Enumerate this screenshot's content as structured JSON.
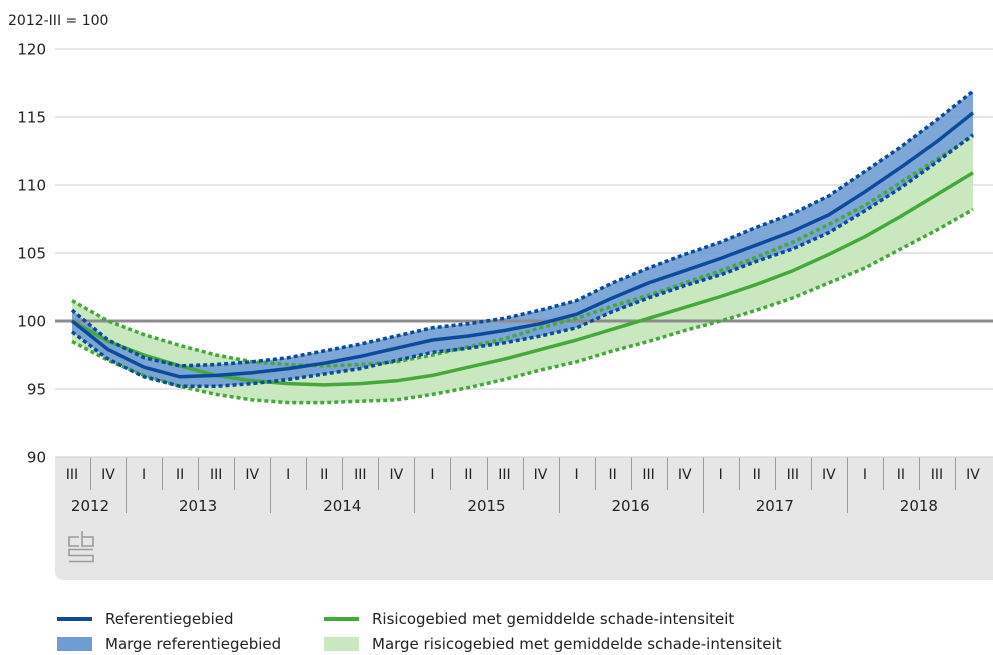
{
  "chart_data": {
    "type": "line",
    "ylabel": "2012-III = 100",
    "ylim": [
      90,
      120
    ],
    "yticks": [
      90,
      95,
      100,
      105,
      110,
      115,
      120
    ],
    "reference_line": 100,
    "grid": true,
    "legend": "bottom",
    "x_axis": {
      "years": [
        {
          "label": "2012",
          "quarters": [
            "III",
            "IV"
          ]
        },
        {
          "label": "2013",
          "quarters": [
            "I",
            "II",
            "III",
            "IV"
          ]
        },
        {
          "label": "2014",
          "quarters": [
            "I",
            "II",
            "III",
            "IV"
          ]
        },
        {
          "label": "2015",
          "quarters": [
            "I",
            "II",
            "III",
            "IV"
          ]
        },
        {
          "label": "2016",
          "quarters": [
            "I",
            "II",
            "III",
            "IV"
          ]
        },
        {
          "label": "2017",
          "quarters": [
            "I",
            "II",
            "III",
            "IV"
          ]
        },
        {
          "label": "2018",
          "quarters": [
            "I",
            "II",
            "III",
            "IV"
          ]
        }
      ]
    },
    "series": [
      {
        "name": "Referentiegebied",
        "kind": "line",
        "color": "#0c4b9c",
        "values": [
          100.0,
          97.9,
          96.6,
          95.9,
          96.0,
          96.2,
          96.5,
          96.9,
          97.4,
          98.0,
          98.6,
          98.9,
          99.3,
          99.8,
          100.5,
          101.7,
          102.8,
          103.7,
          104.6,
          105.6,
          106.6,
          107.8,
          109.5,
          111.3,
          113.2,
          115.3
        ]
      },
      {
        "name": "Marge referentiegebied",
        "kind": "band",
        "color": "#6f9dd3",
        "edge_color": "#0c4b9c",
        "upper": [
          100.8,
          98.6,
          97.3,
          96.7,
          96.8,
          97.0,
          97.3,
          97.8,
          98.3,
          98.9,
          99.5,
          99.8,
          100.2,
          100.8,
          101.5,
          102.8,
          103.9,
          104.9,
          105.8,
          106.9,
          107.9,
          109.2,
          111.0,
          112.8,
          114.8,
          116.9
        ],
        "lower": [
          99.2,
          97.2,
          95.9,
          95.2,
          95.2,
          95.4,
          95.7,
          96.1,
          96.5,
          97.1,
          97.7,
          98.0,
          98.4,
          98.9,
          99.5,
          100.7,
          101.7,
          102.6,
          103.4,
          104.4,
          105.3,
          106.5,
          108.1,
          109.8,
          111.7,
          113.7
        ]
      },
      {
        "name": "Risicogebied met gemiddelde schade-intensiteit",
        "kind": "line",
        "color": "#45a83a",
        "values": [
          100.0,
          98.5,
          97.5,
          96.7,
          96.0,
          95.6,
          95.4,
          95.3,
          95.4,
          95.6,
          96.0,
          96.6,
          97.2,
          97.9,
          98.6,
          99.4,
          100.2,
          101.0,
          101.8,
          102.7,
          103.7,
          104.9,
          106.2,
          107.7,
          109.3,
          110.9
        ]
      },
      {
        "name": "Marge risicogebied met gemiddelde schade-intensiteit",
        "kind": "band",
        "color": "#c9e8c0",
        "edge_color": "#45a83a",
        "upper": [
          101.5,
          100.0,
          99.0,
          98.2,
          97.5,
          97.0,
          96.8,
          96.7,
          96.8,
          97.0,
          97.5,
          98.1,
          98.7,
          99.5,
          100.2,
          101.1,
          101.9,
          102.8,
          103.7,
          104.7,
          105.8,
          107.1,
          108.5,
          110.2,
          111.9,
          113.6
        ],
        "lower": [
          98.5,
          97.1,
          96.0,
          95.2,
          94.6,
          94.2,
          94.0,
          94.0,
          94.1,
          94.2,
          94.6,
          95.1,
          95.7,
          96.4,
          97.0,
          97.8,
          98.5,
          99.3,
          100.0,
          100.8,
          101.7,
          102.8,
          103.9,
          105.3,
          106.7,
          108.2
        ]
      }
    ]
  },
  "colors": {
    "grid": "#cccccc",
    "reference_line": "#8c8c8c",
    "axis_band": "#e6e6e6",
    "separator": "#9a9a9a",
    "logo": "#9a9a9a"
  },
  "branding": {
    "logo_icon": "cbs-logo-icon",
    "logo_text": "cbs"
  }
}
